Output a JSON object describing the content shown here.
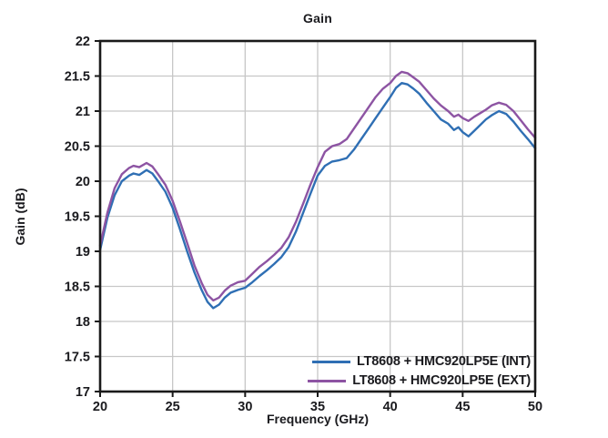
{
  "chart_data": {
    "type": "line",
    "title": "Gain",
    "xlabel": "Frequency (GHz)",
    "ylabel": "Gain (dB)",
    "xlim": [
      20,
      50
    ],
    "ylim": [
      17,
      22
    ],
    "x_ticks": [
      20,
      25,
      30,
      35,
      40,
      45,
      50
    ],
    "y_ticks": [
      17,
      17.5,
      18,
      18.5,
      19,
      19.5,
      20,
      20.5,
      21,
      21.5,
      22
    ],
    "grid": true,
    "legend_position": "lower right",
    "colors": {
      "axis": "#1a1a1a",
      "grid": "#c7c7c7",
      "text": "#1a1a1e",
      "background": "#ffffff"
    },
    "x": [
      20,
      20.5,
      21,
      21.5,
      22,
      22.3,
      22.7,
      23.2,
      23.6,
      24,
      24.5,
      25,
      25.5,
      26,
      26.5,
      27,
      27.4,
      27.8,
      28.2,
      28.6,
      29,
      29.5,
      30,
      30.5,
      31,
      31.5,
      32,
      32.5,
      33,
      33.5,
      34,
      34.5,
      35,
      35.5,
      36,
      36.5,
      37,
      37.5,
      38,
      38.5,
      39,
      39.5,
      40,
      40.4,
      40.8,
      41.2,
      41.6,
      42,
      42.5,
      43,
      43.5,
      44,
      44.4,
      44.7,
      45,
      45.4,
      45.8,
      46.2,
      46.6,
      47,
      47.5,
      48,
      48.5,
      49,
      49.5,
      50
    ],
    "series": [
      {
        "name": "LT8608 + HMC920LP5E (INT)",
        "color": "#2f6fb4",
        "values": [
          19.02,
          19.48,
          19.8,
          20.0,
          20.08,
          20.11,
          20.09,
          20.16,
          20.11,
          20.0,
          19.85,
          19.62,
          19.32,
          19.0,
          18.7,
          18.45,
          18.28,
          18.19,
          18.24,
          18.34,
          18.41,
          18.45,
          18.48,
          18.56,
          18.65,
          18.73,
          18.82,
          18.92,
          19.06,
          19.28,
          19.55,
          19.82,
          20.08,
          20.22,
          20.28,
          20.3,
          20.33,
          20.45,
          20.6,
          20.75,
          20.9,
          21.05,
          21.2,
          21.33,
          21.4,
          21.38,
          21.32,
          21.25,
          21.12,
          21.0,
          20.88,
          20.82,
          20.73,
          20.77,
          20.7,
          20.64,
          20.72,
          20.8,
          20.88,
          20.94,
          21.0,
          20.96,
          20.85,
          20.72,
          20.6,
          20.47
        ]
      },
      {
        "name": "LT8608 + HMC920LP5E (EXT)",
        "color": "#8d54a3",
        "values": [
          19.08,
          19.55,
          19.9,
          20.1,
          20.19,
          20.22,
          20.2,
          20.26,
          20.21,
          20.1,
          19.95,
          19.72,
          19.43,
          19.12,
          18.8,
          18.55,
          18.38,
          18.3,
          18.34,
          18.44,
          18.51,
          18.56,
          18.58,
          18.68,
          18.78,
          18.86,
          18.95,
          19.05,
          19.2,
          19.42,
          19.68,
          19.95,
          20.2,
          20.42,
          20.5,
          20.53,
          20.6,
          20.75,
          20.9,
          21.05,
          21.2,
          21.32,
          21.4,
          21.5,
          21.56,
          21.54,
          21.48,
          21.42,
          21.3,
          21.18,
          21.08,
          21.0,
          20.92,
          20.95,
          20.9,
          20.86,
          20.92,
          20.97,
          21.02,
          21.08,
          21.12,
          21.09,
          21.0,
          20.87,
          20.74,
          20.62
        ]
      }
    ]
  }
}
